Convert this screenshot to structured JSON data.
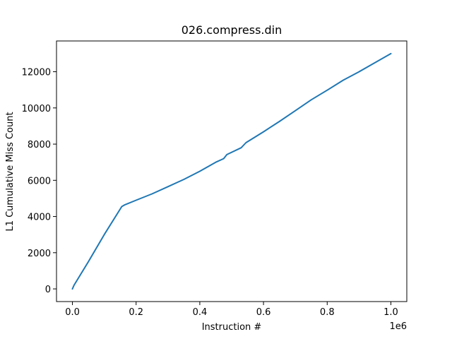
{
  "chart_data": {
    "type": "line",
    "title": "026.compress.din",
    "xlabel": "Instruction #",
    "ylabel": "L1 Cumulative Miss Count",
    "x_offset_label": "1e6",
    "xlim": [
      -0.05,
      1.05
    ],
    "ylim": [
      -700,
      13700
    ],
    "xticks": [
      0.0,
      0.2,
      0.4,
      0.6,
      0.8,
      1.0
    ],
    "xtick_labels": [
      "0.0",
      "0.2",
      "0.4",
      "0.6",
      "0.8",
      "1.0"
    ],
    "yticks": [
      0,
      2000,
      4000,
      6000,
      8000,
      10000,
      12000
    ],
    "ytick_labels": [
      "0",
      "2000",
      "4000",
      "6000",
      "8000",
      "10000",
      "12000"
    ],
    "grid": false,
    "line_color": "#1f77b4",
    "series": [
      {
        "x": [
          0.0,
          0.005,
          0.05,
          0.1,
          0.155,
          0.165,
          0.2,
          0.25,
          0.3,
          0.35,
          0.4,
          0.45,
          0.475,
          0.485,
          0.53,
          0.545,
          0.6,
          0.65,
          0.7,
          0.75,
          0.8,
          0.85,
          0.9,
          0.95,
          1.0
        ],
        "y": [
          0,
          200,
          1500,
          3000,
          4550,
          4650,
          4900,
          5250,
          5650,
          6050,
          6500,
          7000,
          7200,
          7420,
          7800,
          8080,
          8680,
          9250,
          9850,
          10450,
          10980,
          11530,
          12000,
          12500,
          13000
        ]
      }
    ]
  }
}
